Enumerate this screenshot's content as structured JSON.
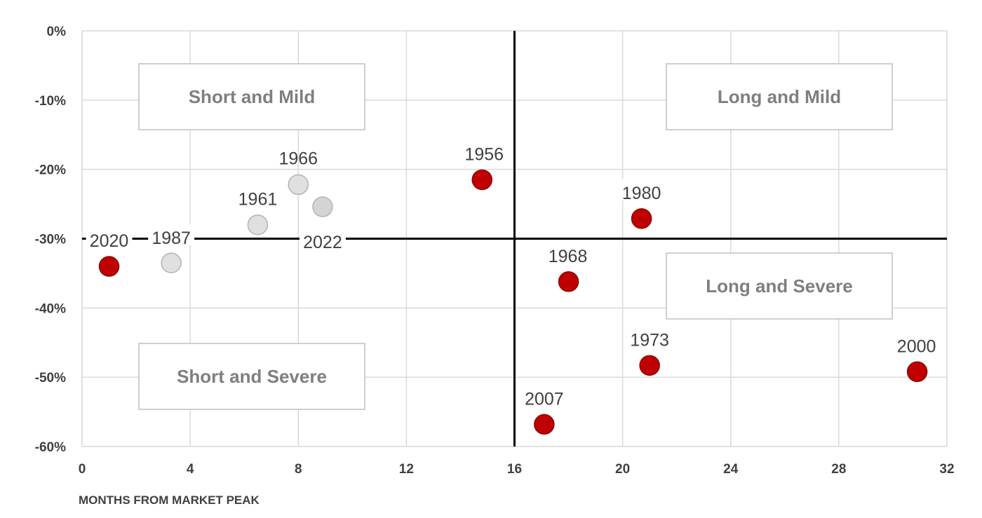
{
  "chart_data": {
    "type": "scatter",
    "xlabel": "MONTHS FROM MARKET PEAK",
    "ylabel": "",
    "xlim": [
      0,
      32
    ],
    "ylim": [
      -60,
      0
    ],
    "x_ticks": [
      0,
      4,
      8,
      12,
      16,
      20,
      24,
      28,
      32
    ],
    "y_ticks": [
      0,
      -10,
      -20,
      -30,
      -40,
      -50,
      -60
    ],
    "x_tick_labels": [
      "0",
      "4",
      "8",
      "12",
      "16",
      "20",
      "24",
      "28",
      "32"
    ],
    "y_tick_labels": [
      "0%",
      "-10%",
      "-20%",
      "-30%",
      "-40%",
      "-50%",
      "-60%"
    ],
    "grid": true,
    "reference_lines": {
      "x": 16,
      "y": -30
    },
    "quadrants": [
      {
        "label": "Short and Mild",
        "position": "top-left"
      },
      {
        "label": "Long and Mild",
        "position": "top-right"
      },
      {
        "label": "Long and Severe",
        "position": "middle-right"
      },
      {
        "label": "Short and Severe",
        "position": "bottom-left"
      }
    ],
    "points": [
      {
        "label": "2020",
        "x": 1.0,
        "y": -34,
        "color": "#c00000"
      },
      {
        "label": "1987",
        "x": 3.3,
        "y": -33.5,
        "color": "#e0e0e0"
      },
      {
        "label": "1961",
        "x": 6.5,
        "y": -28,
        "color": "#e0e0e0"
      },
      {
        "label": "1966",
        "x": 8.0,
        "y": -22.2,
        "color": "#e0e0e0"
      },
      {
        "label": "2022",
        "x": 8.9,
        "y": -25.4,
        "color": "#d4d4d4"
      },
      {
        "label": "1956",
        "x": 14.8,
        "y": -21.5,
        "color": "#c00000"
      },
      {
        "label": "2007",
        "x": 17.1,
        "y": -56.8,
        "color": "#c00000"
      },
      {
        "label": "1968",
        "x": 18.0,
        "y": -36.2,
        "color": "#c00000"
      },
      {
        "label": "1980",
        "x": 20.7,
        "y": -27.1,
        "color": "#c00000"
      },
      {
        "label": "1973",
        "x": 21.0,
        "y": -48.3,
        "color": "#c00000"
      },
      {
        "label": "2000",
        "x": 30.9,
        "y": -49.2,
        "color": "#c00000"
      }
    ]
  }
}
